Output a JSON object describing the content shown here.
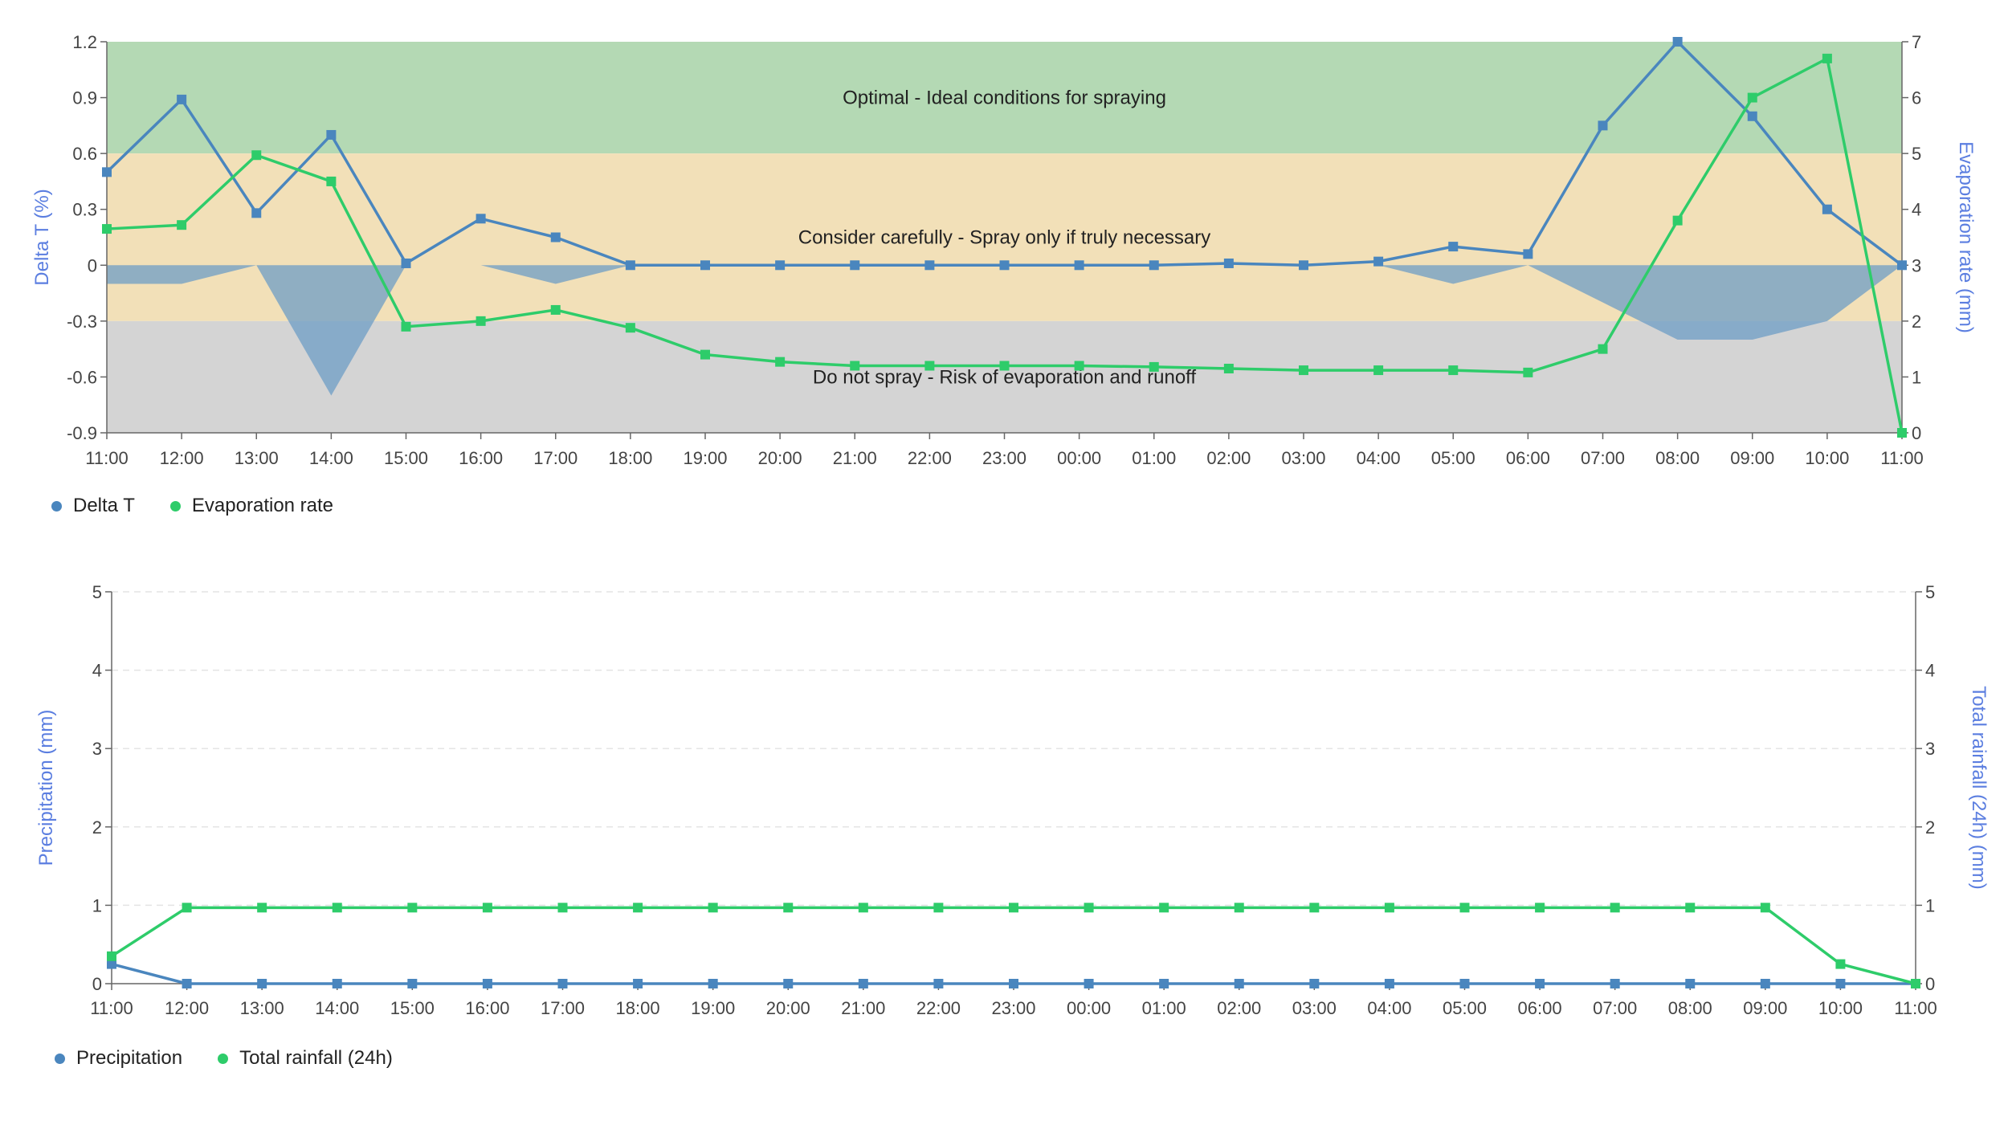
{
  "chart_data": [
    {
      "type": "line",
      "x": [
        "11:00",
        "12:00",
        "13:00",
        "14:00",
        "15:00",
        "16:00",
        "17:00",
        "18:00",
        "19:00",
        "20:00",
        "21:00",
        "22:00",
        "23:00",
        "00:00",
        "01:00",
        "02:00",
        "03:00",
        "04:00",
        "05:00",
        "06:00",
        "07:00",
        "08:00",
        "09:00",
        "10:00",
        "11:00"
      ],
      "series": [
        {
          "name": "Delta T",
          "axis": "left",
          "color": "#4a86be",
          "values": [
            0.5,
            0.89,
            0.28,
            0.7,
            0.01,
            0.25,
            0.15,
            0,
            0,
            0,
            0,
            0,
            0,
            0,
            0,
            0.01,
            0,
            0.02,
            0.1,
            0.06,
            0.75,
            1.2,
            0.8,
            0.3,
            0
          ]
        },
        {
          "name": "Evaporation rate",
          "axis": "right",
          "color": "#2ecc6a",
          "values": [
            3.65,
            3.72,
            4.97,
            4.5,
            1.9,
            2.0,
            2.2,
            1.88,
            1.4,
            1.27,
            1.2,
            1.2,
            1.2,
            1.2,
            1.18,
            1.15,
            1.12,
            1.12,
            1.12,
            1.08,
            1.5,
            3.8,
            6.0,
            6.7,
            0
          ]
        }
      ],
      "area_values": [
        -0.1,
        -0.1,
        0,
        -0.7,
        0,
        0,
        -0.1,
        0,
        0,
        0,
        0,
        0,
        0,
        0,
        0,
        0,
        0,
        0,
        -0.1,
        0,
        -0.2,
        -0.4,
        -0.4,
        -0.3,
        0
      ],
      "ylabel": "Delta T (%)",
      "y2label": "Evaporation rate (mm)",
      "ylim": [
        -0.9,
        1.2
      ],
      "yticks": [
        "-0.9",
        "-0.6",
        "-0.3",
        "0",
        "0.3",
        "0.6",
        "0.9",
        "1.2"
      ],
      "y2lim": [
        0,
        7
      ],
      "y2ticks": [
        "0",
        "1",
        "2",
        "3",
        "4",
        "5",
        "6",
        "7"
      ],
      "bands": [
        {
          "from": 0.6,
          "to": 1.2,
          "color": "#b4d9b4",
          "label": "Optimal - Ideal conditions for spraying",
          "label_y": 0.9
        },
        {
          "from": -0.3,
          "to": 0.6,
          "color": "#f2e0b8",
          "label": "Consider carefully - Spray only if truly necessary",
          "label_y": 0.15
        },
        {
          "from": -0.9,
          "to": -0.3,
          "color": "#d4d4d4",
          "label": "Do not spray - Risk of evaporation and runoff",
          "label_y": -0.6
        }
      ],
      "legend": [
        "Delta T",
        "Evaporation rate"
      ],
      "legend_placement": "bottom-left",
      "grid": false
    },
    {
      "type": "line",
      "x": [
        "11:00",
        "12:00",
        "13:00",
        "14:00",
        "15:00",
        "16:00",
        "17:00",
        "18:00",
        "19:00",
        "20:00",
        "21:00",
        "22:00",
        "23:00",
        "00:00",
        "01:00",
        "02:00",
        "03:00",
        "04:00",
        "05:00",
        "06:00",
        "07:00",
        "08:00",
        "09:00",
        "10:00",
        "11:00"
      ],
      "series": [
        {
          "name": "Precipitation",
          "axis": "left",
          "color": "#4a86be",
          "values": [
            0.25,
            0,
            0,
            0,
            0,
            0,
            0,
            0,
            0,
            0,
            0,
            0,
            0,
            0,
            0,
            0,
            0,
            0,
            0,
            0,
            0,
            0,
            0,
            0,
            0
          ]
        },
        {
          "name": "Total rainfall (24h)",
          "axis": "right",
          "color": "#2ecc6a",
          "values": [
            0.35,
            0.97,
            0.97,
            0.97,
            0.97,
            0.97,
            0.97,
            0.97,
            0.97,
            0.97,
            0.97,
            0.97,
            0.97,
            0.97,
            0.97,
            0.97,
            0.97,
            0.97,
            0.97,
            0.97,
            0.97,
            0.97,
            0.97,
            0.25,
            0
          ]
        }
      ],
      "ylabel": "Precipitation (mm)",
      "y2label": "Total rainfall (24h) (mm)",
      "ylim": [
        0,
        5
      ],
      "yticks": [
        "0",
        "1",
        "2",
        "3",
        "4",
        "5"
      ],
      "y2lim": [
        0,
        5
      ],
      "y2ticks": [
        "0",
        "1",
        "2",
        "3",
        "4",
        "5"
      ],
      "legend": [
        "Precipitation",
        "Total rainfall (24h)"
      ],
      "legend_placement": "bottom-left",
      "grid": true
    }
  ],
  "colors": {
    "axis_title": "#5b7ee0",
    "axis": "#666666",
    "tick_text": "#444444",
    "area": "#6e9ec6",
    "grid": "#e4e4e4"
  }
}
